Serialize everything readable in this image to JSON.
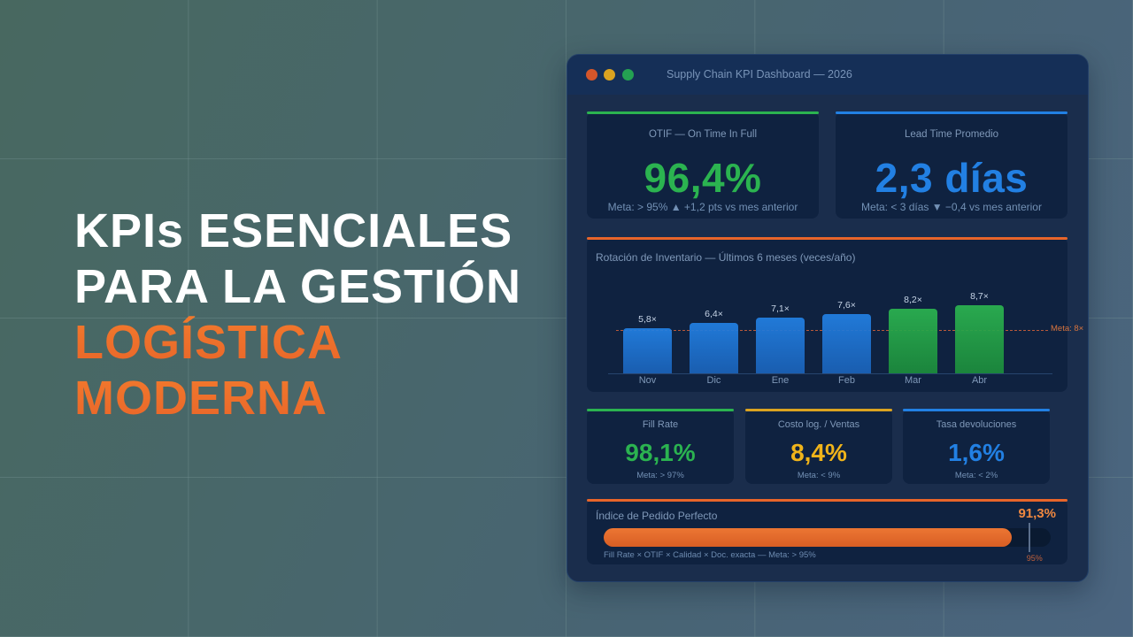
{
  "colors": {
    "accent_orange": "#e8652a",
    "green": "#2bb350",
    "blue": "#2280e3",
    "yellow": "#f0b41a",
    "orange_kpi": "#f08840"
  },
  "headline": {
    "lines_white": [
      "KPIs ESENCIALES",
      "PARA LA GESTIÓN"
    ],
    "lines_orange": [
      "LOGÍSTICA",
      "MODERNA"
    ]
  },
  "window": {
    "title": "Supply Chain KPI Dashboard — 2026",
    "controls": [
      "close",
      "minimize",
      "maximize"
    ]
  },
  "kpis_top": [
    {
      "label": "OTIF — On Time In Full",
      "value": "96,4%",
      "sub": "Meta: > 95% ▲ +1,2 pts vs mes anterior",
      "color": "#2bb350"
    },
    {
      "label": "Lead Time Promedio",
      "value": "2,3 días",
      "sub": "Meta: < 3 días ▼ −0,4 vs mes anterior",
      "color": "#2280e3"
    }
  ],
  "chart": {
    "title": "Rotación de Inventario — Últimos 6 meses (veces/año)",
    "meta_label": "Meta: 8×",
    "bars": [
      {
        "month": "Nov",
        "label": "5,8×",
        "value": 5.8,
        "color": "blue"
      },
      {
        "month": "Dic",
        "label": "6,4×",
        "value": 6.4,
        "color": "blue"
      },
      {
        "month": "Ene",
        "label": "7,1×",
        "value": 7.1,
        "color": "blue"
      },
      {
        "month": "Feb",
        "label": "7,6×",
        "value": 7.6,
        "color": "blue"
      },
      {
        "month": "Mar",
        "label": "8,2×",
        "value": 8.2,
        "color": "green"
      },
      {
        "month": "Abr",
        "label": "8,7×",
        "value": 8.7,
        "color": "green"
      }
    ]
  },
  "chart_data": {
    "type": "bar",
    "title": "Rotación de Inventario — Últimos 6 meses (veces/año)",
    "categories": [
      "Nov",
      "Dic",
      "Ene",
      "Feb",
      "Mar",
      "Abr"
    ],
    "values": [
      5.8,
      6.4,
      7.1,
      7.6,
      8.2,
      8.7
    ],
    "xlabel": "",
    "ylabel": "veces/año",
    "annotations": [
      {
        "type": "hline",
        "value": 8,
        "label": "Meta: 8×"
      }
    ],
    "grid": false,
    "legend": null
  },
  "kpis_small": [
    {
      "label": "Fill Rate",
      "value": "98,1%",
      "sub": "Meta: > 97%",
      "color": "#2bb350"
    },
    {
      "label": "Costo log. / Ventas",
      "value": "8,4%",
      "sub": "Meta: < 9%",
      "color": "#f0b41a"
    },
    {
      "label": "Tasa devoluciones",
      "value": "1,6%",
      "sub": "Meta: < 2%",
      "color": "#2280e3"
    }
  ],
  "perfect_order": {
    "title": "Índice de Pedido Perfecto",
    "value": "91,3%",
    "percent": 91.3,
    "target_percent": 95,
    "target_label": "95%",
    "formula": "Fill Rate × OTIF × Calidad × Doc. exacta — Meta: > 95%"
  }
}
